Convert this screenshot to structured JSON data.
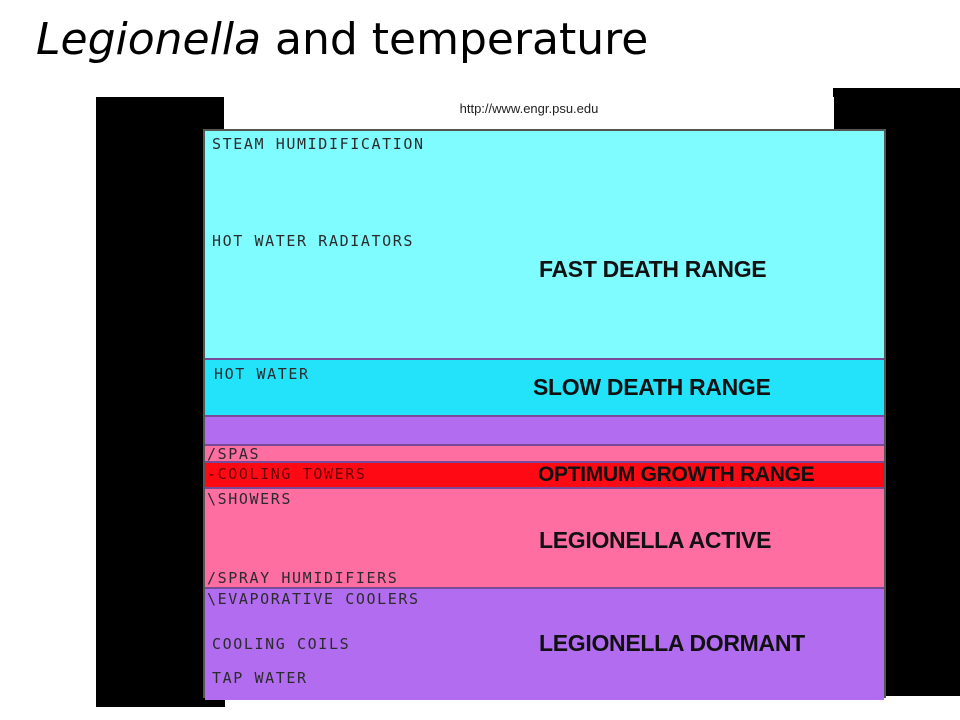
{
  "slide": {
    "title_italic": "Legionella",
    "title_rest": " and temperature",
    "source_url": "http://www.engr.psu.edu"
  },
  "colors": {
    "fast_death": "#7ffcff",
    "slow_death": "#23e3fb",
    "purple": "#b26cf0",
    "pink": "#ff6ea0",
    "optimum": "#ff0a14",
    "panel_black": "#000000"
  },
  "diagram": {
    "fast_death": {
      "range": "FAST DEATH RANGE",
      "labels": [
        "STEAM HUMIDIFICATION",
        "HOT WATER RADIATORS"
      ]
    },
    "slow_death": {
      "range": "SLOW DEATH RANGE",
      "labels": [
        "HOT WATER"
      ]
    },
    "spas": {
      "labels": [
        "SPAS"
      ]
    },
    "optimum": {
      "range": "OPTIMUM GROWTH RANGE",
      "labels": [
        "COOLING TOWERS"
      ]
    },
    "active": {
      "range": "LEGIONELLA ACTIVE",
      "labels": [
        "SHOWERS",
        "SPRAY HUMIDIFIERS"
      ]
    },
    "dormant": {
      "range": "LEGIONELLA DORMANT",
      "labels": [
        "EVAPORATIVE COOLERS",
        "COOLING COILS",
        "TAP WATER"
      ]
    }
  }
}
